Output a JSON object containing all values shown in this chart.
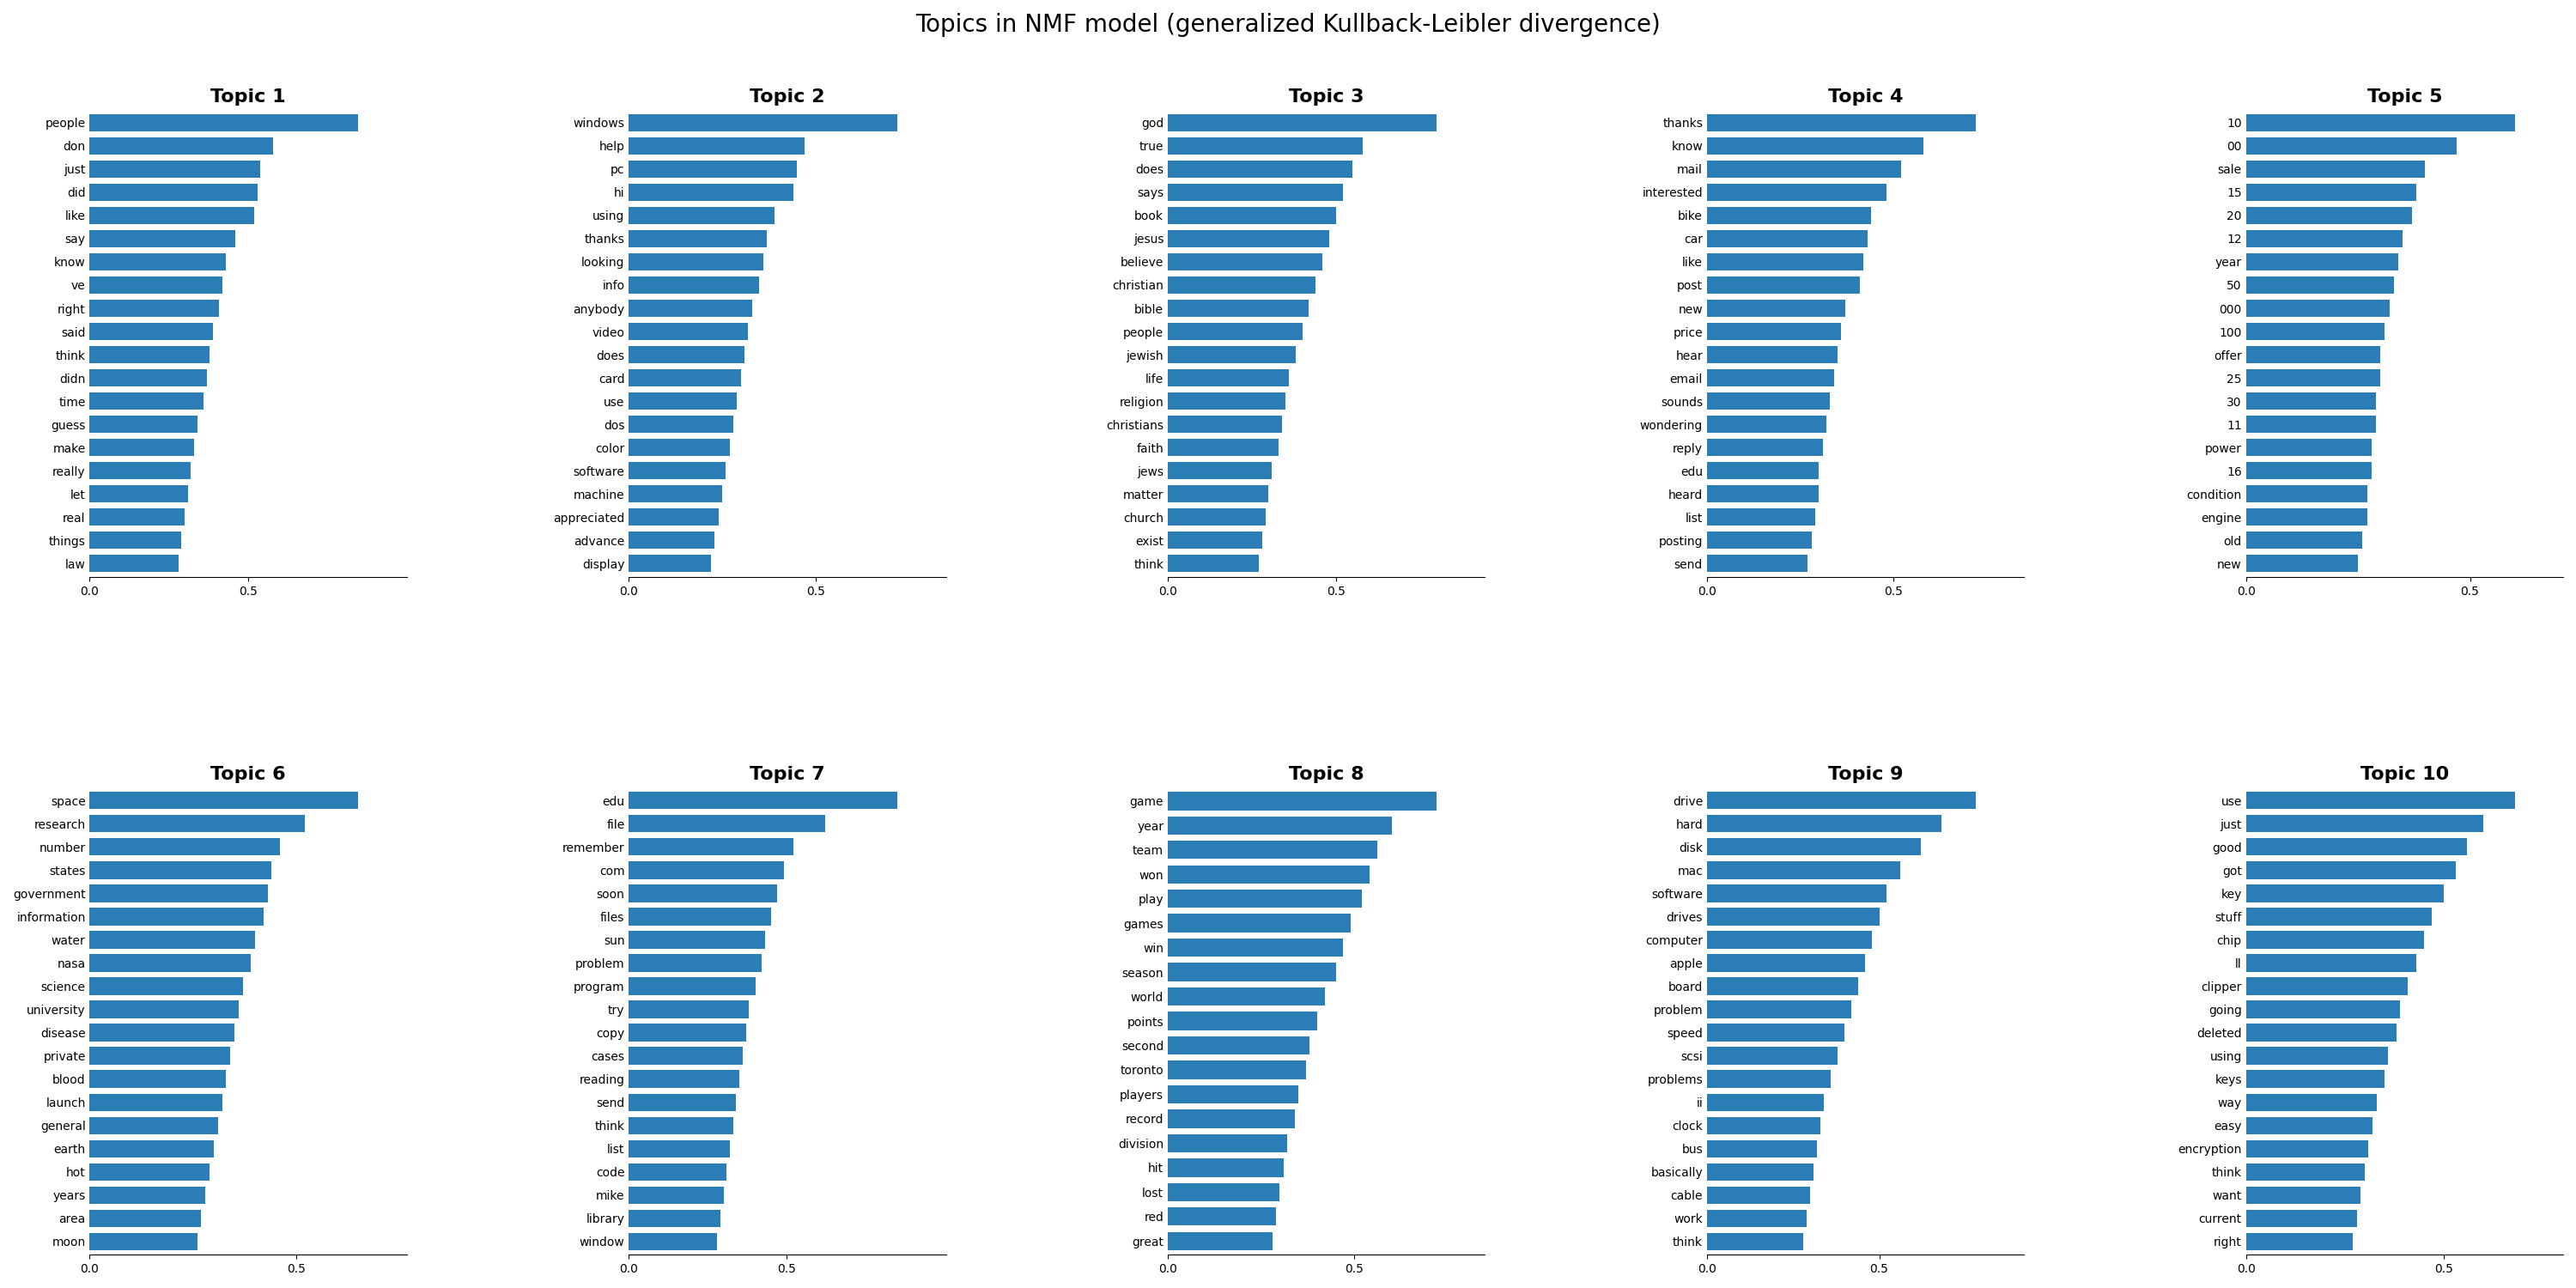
{
  "title": "Topics in NMF model (generalized Kullback-Leibler divergence)",
  "bar_color": "#2a7db5",
  "topics": [
    {
      "title": "Topic 1",
      "words": [
        "people",
        "don",
        "just",
        "did",
        "like",
        "say",
        "know",
        "ve",
        "right",
        "said",
        "think",
        "didn",
        "time",
        "guess",
        "make",
        "really",
        "let",
        "real",
        "things",
        "law"
      ],
      "values": [
        0.85,
        0.58,
        0.54,
        0.53,
        0.52,
        0.46,
        0.43,
        0.42,
        0.41,
        0.39,
        0.38,
        0.37,
        0.36,
        0.34,
        0.33,
        0.32,
        0.31,
        0.3,
        0.29,
        0.28
      ]
    },
    {
      "title": "Topic 2",
      "words": [
        "windows",
        "help",
        "pc",
        "hi",
        "using",
        "thanks",
        "looking",
        "info",
        "anybody",
        "video",
        "does",
        "card",
        "use",
        "dos",
        "color",
        "software",
        "machine",
        "appreciated",
        "advance",
        "display"
      ],
      "values": [
        0.72,
        0.47,
        0.45,
        0.44,
        0.39,
        0.37,
        0.36,
        0.35,
        0.33,
        0.32,
        0.31,
        0.3,
        0.29,
        0.28,
        0.27,
        0.26,
        0.25,
        0.24,
        0.23,
        0.22
      ]
    },
    {
      "title": "Topic 3",
      "words": [
        "god",
        "true",
        "does",
        "says",
        "book",
        "jesus",
        "believe",
        "christian",
        "bible",
        "people",
        "jewish",
        "life",
        "religion",
        "christians",
        "faith",
        "jews",
        "matter",
        "church",
        "exist",
        "think"
      ],
      "values": [
        0.8,
        0.58,
        0.55,
        0.52,
        0.5,
        0.48,
        0.46,
        0.44,
        0.42,
        0.4,
        0.38,
        0.36,
        0.35,
        0.34,
        0.33,
        0.31,
        0.3,
        0.29,
        0.28,
        0.27
      ]
    },
    {
      "title": "Topic 4",
      "words": [
        "thanks",
        "know",
        "mail",
        "interested",
        "bike",
        "car",
        "like",
        "post",
        "new",
        "price",
        "hear",
        "email",
        "sounds",
        "wondering",
        "reply",
        "edu",
        "heard",
        "list",
        "posting",
        "send"
      ],
      "values": [
        0.72,
        0.58,
        0.52,
        0.48,
        0.44,
        0.43,
        0.42,
        0.41,
        0.37,
        0.36,
        0.35,
        0.34,
        0.33,
        0.32,
        0.31,
        0.3,
        0.3,
        0.29,
        0.28,
        0.27
      ]
    },
    {
      "title": "Topic 5",
      "words": [
        "10",
        "00",
        "sale",
        "15",
        "20",
        "12",
        "year",
        "50",
        "000",
        "100",
        "offer",
        "25",
        "30",
        "11",
        "power",
        "16",
        "condition",
        "engine",
        "old",
        "new"
      ],
      "values": [
        0.6,
        0.47,
        0.4,
        0.38,
        0.37,
        0.35,
        0.34,
        0.33,
        0.32,
        0.31,
        0.3,
        0.3,
        0.29,
        0.29,
        0.28,
        0.28,
        0.27,
        0.27,
        0.26,
        0.25
      ]
    },
    {
      "title": "Topic 6",
      "words": [
        "space",
        "research",
        "number",
        "states",
        "government",
        "information",
        "water",
        "nasa",
        "science",
        "university",
        "disease",
        "private",
        "blood",
        "launch",
        "general",
        "earth",
        "hot",
        "years",
        "area",
        "moon"
      ],
      "values": [
        0.65,
        0.52,
        0.46,
        0.44,
        0.43,
        0.42,
        0.4,
        0.39,
        0.37,
        0.36,
        0.35,
        0.34,
        0.33,
        0.32,
        0.31,
        0.3,
        0.29,
        0.28,
        0.27,
        0.26
      ]
    },
    {
      "title": "Topic 7",
      "words": [
        "edu",
        "file",
        "remember",
        "com",
        "soon",
        "files",
        "sun",
        "problem",
        "program",
        "try",
        "copy",
        "cases",
        "reading",
        "send",
        "think",
        "list",
        "code",
        "mike",
        "library",
        "window"
      ],
      "values": [
        0.85,
        0.62,
        0.52,
        0.49,
        0.47,
        0.45,
        0.43,
        0.42,
        0.4,
        0.38,
        0.37,
        0.36,
        0.35,
        0.34,
        0.33,
        0.32,
        0.31,
        0.3,
        0.29,
        0.28
      ]
    },
    {
      "title": "Topic 8",
      "words": [
        "game",
        "year",
        "team",
        "won",
        "play",
        "games",
        "win",
        "season",
        "world",
        "points",
        "second",
        "toronto",
        "players",
        "record",
        "division",
        "hit",
        "lost",
        "red",
        "great"
      ],
      "values": [
        0.72,
        0.6,
        0.56,
        0.54,
        0.52,
        0.49,
        0.47,
        0.45,
        0.42,
        0.4,
        0.38,
        0.37,
        0.35,
        0.34,
        0.32,
        0.31,
        0.3,
        0.29,
        0.28
      ]
    },
    {
      "title": "Topic 9",
      "words": [
        "drive",
        "hard",
        "disk",
        "mac",
        "software",
        "drives",
        "computer",
        "apple",
        "board",
        "problem",
        "speed",
        "scsi",
        "problems",
        "ii",
        "clock",
        "bus",
        "basically",
        "cable",
        "work",
        "think"
      ],
      "values": [
        0.78,
        0.68,
        0.62,
        0.56,
        0.52,
        0.5,
        0.48,
        0.46,
        0.44,
        0.42,
        0.4,
        0.38,
        0.36,
        0.34,
        0.33,
        0.32,
        0.31,
        0.3,
        0.29,
        0.28
      ]
    },
    {
      "title": "Topic 10",
      "words": [
        "use",
        "just",
        "good",
        "got",
        "key",
        "stuff",
        "chip",
        "ll",
        "clipper",
        "going",
        "deleted",
        "using",
        "keys",
        "way",
        "easy",
        "encryption",
        "think",
        "want",
        "current",
        "right"
      ],
      "values": [
        0.68,
        0.6,
        0.56,
        0.53,
        0.5,
        0.47,
        0.45,
        0.43,
        0.41,
        0.39,
        0.38,
        0.36,
        0.35,
        0.33,
        0.32,
        0.31,
        0.3,
        0.29,
        0.28,
        0.27
      ]
    }
  ]
}
